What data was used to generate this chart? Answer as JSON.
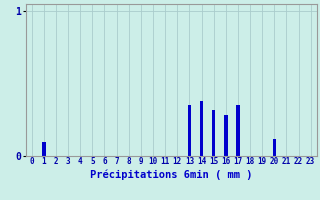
{
  "hours": [
    0,
    1,
    2,
    3,
    4,
    5,
    6,
    7,
    8,
    9,
    10,
    11,
    12,
    13,
    14,
    15,
    16,
    17,
    18,
    19,
    20,
    21,
    22,
    23
  ],
  "values": [
    0,
    0.1,
    0,
    0,
    0,
    0,
    0,
    0,
    0,
    0,
    0,
    0,
    0,
    0.35,
    0.38,
    0.32,
    0.28,
    0.35,
    0,
    0,
    0.12,
    0,
    0,
    0
  ],
  "bar_color": "#0000cc",
  "bg_color": "#cceee8",
  "grid_color": "#aacccc",
  "xlabel": "Précipitations 6min ( mm )",
  "xlabel_color": "#0000cc",
  "ytick_color": "#0000aa",
  "xtick_color": "#0000aa",
  "ylim": [
    0,
    1.05
  ],
  "xlim": [
    -0.5,
    23.5
  ]
}
